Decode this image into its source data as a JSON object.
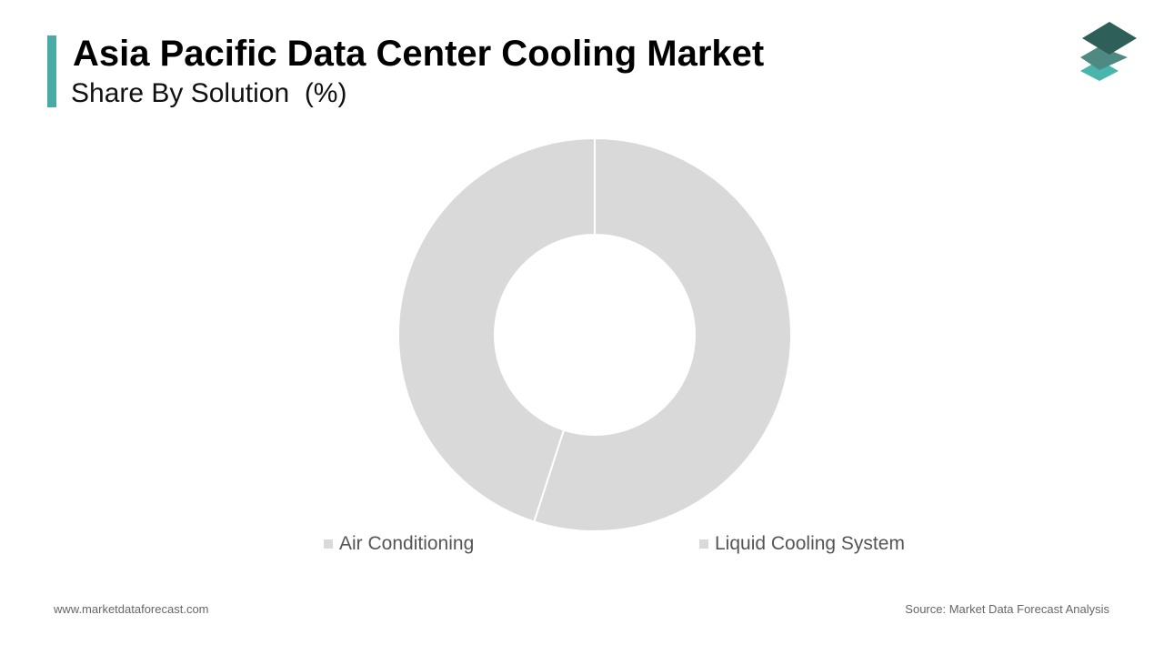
{
  "header": {
    "title": "Asia Pacific Data Center Cooling Market",
    "subtitle": "Share By Solution  (%)"
  },
  "colors": {
    "accent": "#4aaba6",
    "slice": "#d9d9d9",
    "logo_dark": "#2e5f58",
    "logo_mid": "#4f8a82",
    "logo_light": "#4ab5ad"
  },
  "logo": {
    "icon": "stacked-layers-icon"
  },
  "chart_data": {
    "type": "pie",
    "style": "donut",
    "categories": [
      "Liquid Cooling System",
      "Air Conditioning"
    ],
    "values": [
      55,
      45
    ],
    "unit": "%",
    "legend_position": "bottom"
  },
  "legend": {
    "items": [
      "Air Conditioning",
      "Liquid Cooling System"
    ]
  },
  "footer": {
    "website": "www.marketdataforecast.com",
    "source": "Source: Market Data Forecast Analysis"
  }
}
